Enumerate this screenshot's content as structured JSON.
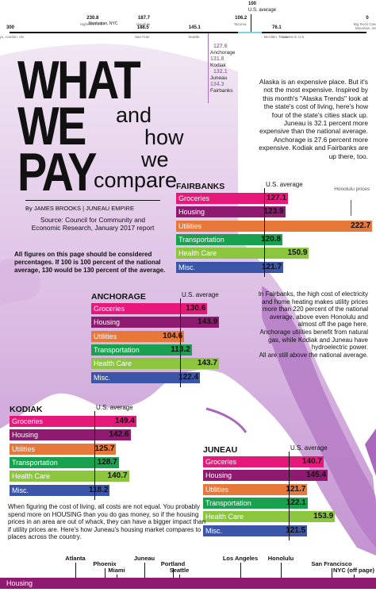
{
  "scale": {
    "top_value": "100",
    "top_label": "U.S. average",
    "items": [
      {
        "value": "300",
        "label": "Tokyo, London, etc.",
        "pos": 300
      },
      {
        "value": "230.8",
        "label": "Highest in U.S.",
        "pos": 230.8
      },
      {
        "value": "188.5",
        "label": "San Fran",
        "pos": 188.5
      },
      {
        "value": "187.7",
        "label": "Honolulu",
        "pos": 187.7
      },
      {
        "value": "145.1",
        "label": "Seattle",
        "pos": 145.1
      },
      {
        "value": "106.2",
        "label": "Tacoma",
        "pos": 106.2
      },
      {
        "value": "76.1",
        "label": "McAllen, Texas",
        "pos": 76.1
      },
      {
        "value": "0",
        "label": "Big Rock Candy Mountain, etc.",
        "pos": 0
      }
    ],
    "manhattan_label": "Manhattan, NYC",
    "lowest_label": "Lowest in U.S.",
    "alaska": [
      {
        "value": "127.6",
        "label": "Anchorage"
      },
      {
        "value": "131.8",
        "label": "Kodiak"
      },
      {
        "value": "132.1",
        "label": "Juneau"
      },
      {
        "value": "134.3",
        "label": "Fairbanks"
      }
    ]
  },
  "headline": {
    "what": "WHAT",
    "we": "WE",
    "pay": "PAY",
    "and": "and",
    "how": "how",
    "we2": "we",
    "compare": "compare"
  },
  "byline": "By JAMES BROOKS | JUNEAU EMPIRE",
  "source": "Source: Council for Community and Economic Research, January 2017 report",
  "note": "All figures on this page should be considered percentages. If 100 is 100 percent of the national average, 130 would be 130 percent of the average.",
  "intro": "Alaska is an expensive place. But it's not the most expensive. Inspired by this month's \"Alaska Trends\" look at the state's cost of living, here's how four of the state's cities stack up. Juneau is 32.1 percent more expensive than the national average. Anchorage is 27.6 percent more expensive. Kodiak and Fairbanks are up there, too.",
  "side_note": "In Fairbanks, the high cost of electricity and home heating makes utility prices more than 220 percent of the national average, above even Honolulu and almost off the page here.\nAnchorage utilities benefit from natural gas, while Kodiak and Juneau have hydroelectric power.\nAll are still above the national average.",
  "honolulu_note": "Honolulu prices",
  "usavg_label": "U.S. average",
  "colors": {
    "Groceries": "#e6197a",
    "Housing": "#8e1b6f",
    "Utilities": "#e8773a",
    "Transportation": "#18a24f",
    "Health Care": "#8cc63f",
    "Misc.": "#3b56a8"
  },
  "chart_data": [
    {
      "type": "bar",
      "title": "FAIRBANKS",
      "categories": [
        "Groceries",
        "Housing",
        "Utilities",
        "Transportation",
        "Health Care",
        "Misc."
      ],
      "values": [
        127.1,
        123.9,
        222.7,
        120.8,
        150.9,
        121.7
      ],
      "reference_line": {
        "value": 100,
        "label": "U.S. average"
      }
    },
    {
      "type": "bar",
      "title": "ANCHORAGE",
      "categories": [
        "Groceries",
        "Housing",
        "Utilities",
        "Transportation",
        "Health Care",
        "Misc."
      ],
      "values": [
        130.6,
        143.9,
        104.6,
        113.2,
        143.7,
        122.4
      ],
      "reference_line": {
        "value": 100,
        "label": "U.S. average"
      }
    },
    {
      "type": "bar",
      "title": "KODIAK",
      "categories": [
        "Groceries",
        "Housing",
        "Utilities",
        "Transportation",
        "Health Care",
        "Misc."
      ],
      "values": [
        149.4,
        142.6,
        125.7,
        128.7,
        140.7,
        118.2
      ],
      "reference_line": {
        "value": 100,
        "label": "U.S. average"
      }
    },
    {
      "type": "bar",
      "title": "JUNEAU",
      "categories": [
        "Groceries",
        "Housing",
        "Utilities",
        "Transportation",
        "Health Care",
        "Misc."
      ],
      "values": [
        140.7,
        145.4,
        121.7,
        122.1,
        153.9,
        121.5
      ],
      "reference_line": {
        "value": 100,
        "label": "U.S. average"
      }
    }
  ],
  "housing_intro": "When figuring the cost of living, all costs are not equal. You probably spend more on HOUSING than you do gas money, so if the housing prices in an area are out of whack, they can have a bigger impact than if utility prices are. Here's how Juneau's housing market compares to places across the country.",
  "housing_bar_label": "Housing",
  "housing_cities": [
    {
      "name": "Atlanta"
    },
    {
      "name": "Phoenix"
    },
    {
      "name": "Miami"
    },
    {
      "name": "Juneau"
    },
    {
      "name": "Portland"
    },
    {
      "name": "Seattle"
    },
    {
      "name": "Los Angeles"
    },
    {
      "name": "Honolulu"
    },
    {
      "name": "San Francisco"
    },
    {
      "name": "NYC (off page)"
    }
  ]
}
